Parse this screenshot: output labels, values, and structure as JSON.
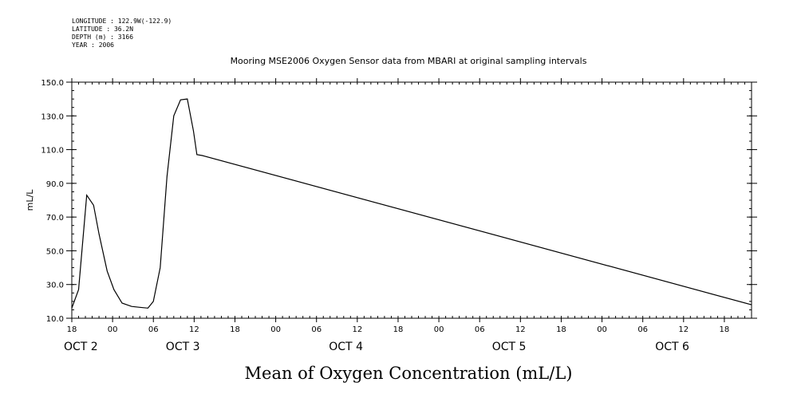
{
  "header": {
    "longitude": "LONGITUDE : 122.9W(-122.9)",
    "latitude": "LATITUDE : 36.2N",
    "depth": "DEPTH (m) : 3166",
    "year": "YEAR : 2006"
  },
  "chart_data": {
    "type": "line",
    "title": "Mooring MSE2006 Oxygen Sensor data from MBARI at original sampling intervals",
    "xlabel": "Mean of Oxygen Concentration (mL/L)",
    "ylabel": "mL/L",
    "ylim": [
      10,
      150
    ],
    "yticks": [
      10,
      30,
      50,
      70,
      90,
      110,
      130,
      150
    ],
    "xlim_hours": [
      0,
      100
    ],
    "xtick_hours": [
      0,
      6,
      12,
      18,
      24,
      30,
      36,
      42,
      48,
      54,
      60,
      66,
      72,
      78,
      84,
      90,
      96
    ],
    "xtick_labels": [
      "18",
      "00",
      "06",
      "12",
      "18",
      "00",
      "06",
      "12",
      "18",
      "00",
      "06",
      "12",
      "18",
      "00",
      "06",
      "12",
      "18"
    ],
    "date_labels": [
      {
        "hour": 0,
        "text": "OCT  2"
      },
      {
        "hour": 15,
        "text": "OCT  3"
      },
      {
        "hour": 39,
        "text": "OCT  4"
      },
      {
        "hour": 63,
        "text": "OCT  5"
      },
      {
        "hour": 87,
        "text": "OCT  6"
      }
    ],
    "grid": false,
    "series": [
      {
        "x": [
          0.0,
          1.0,
          2.2,
          3.2,
          4.0,
          5.2,
          6.2,
          7.4,
          8.8,
          10.0,
          11.2,
          12.0,
          13.0,
          14.0,
          15.0,
          16.0,
          17.0,
          17.9,
          18.4,
          19.2,
          100.0
        ],
        "y": [
          16,
          27,
          83,
          77,
          60,
          38,
          27,
          19,
          17,
          16.5,
          16,
          20,
          40,
          94,
          130,
          139.5,
          140,
          121,
          107,
          106.5,
          18
        ]
      }
    ]
  }
}
